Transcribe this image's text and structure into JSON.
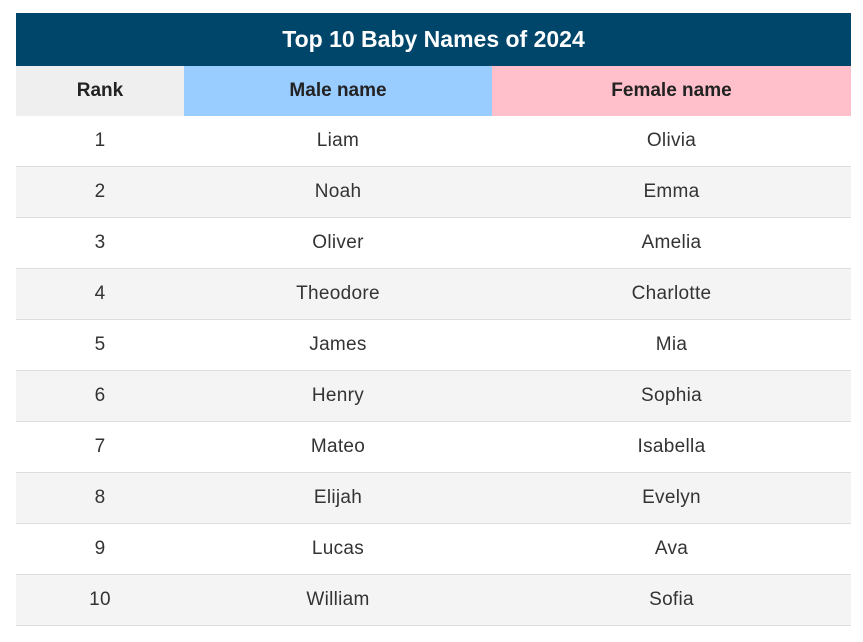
{
  "chart_data": {
    "type": "table",
    "title": "Top 10 Baby Names of 2024",
    "columns": [
      "Rank",
      "Male name",
      "Female name"
    ],
    "rows": [
      [
        "1",
        "Liam",
        "Olivia"
      ],
      [
        "2",
        "Noah",
        "Emma"
      ],
      [
        "3",
        "Oliver",
        "Amelia"
      ],
      [
        "4",
        "Theodore",
        "Charlotte"
      ],
      [
        "5",
        "James",
        "Mia"
      ],
      [
        "6",
        "Henry",
        "Sophia"
      ],
      [
        "7",
        "Mateo",
        "Isabella"
      ],
      [
        "8",
        "Elijah",
        "Evelyn"
      ],
      [
        "9",
        "Lucas",
        "Ava"
      ],
      [
        "10",
        "William",
        "Sofia"
      ]
    ]
  },
  "colors": {
    "title_background": "#00466b",
    "rank_header_background": "#efefef",
    "male_header_background": "#99ccff",
    "female_header_background": "#ffc0cb",
    "alternate_row_background": "#f4f4f4"
  }
}
